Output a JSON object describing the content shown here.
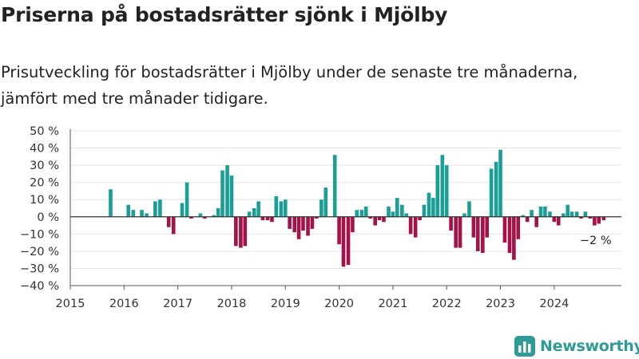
{
  "title": "Priserna på bostadsrätter sjönk i Mjölby",
  "subtitle": "Prisutveckling för bostadsrätter i Mjölby under de senaste tre månaderna, jämfört med tre månader tidigare.",
  "brand": {
    "name": "Newsworthy",
    "logo_icon": "bar-chart-logo-icon",
    "color": "#2e9b96"
  },
  "colors": {
    "positive": "#1a9e96",
    "negative": "#a3134a",
    "grid": "#e4e4e4",
    "axis": "#555555"
  },
  "chart_data": {
    "type": "bar",
    "xlabel": "",
    "ylabel": "",
    "xlim": [
      2015,
      2025.25
    ],
    "ylim": [
      -40,
      50
    ],
    "y_ticks": [
      50,
      40,
      30,
      20,
      10,
      0,
      -10,
      -20,
      -30,
      -40
    ],
    "y_tick_labels": [
      "50 %",
      "40 %",
      "30 %",
      "20 %",
      "10 %",
      "0 %",
      "−10 %",
      "−20 %",
      "−30 %",
      "−40 %"
    ],
    "x_ticks": [
      2015,
      2016,
      2017,
      2018,
      2019,
      2020,
      2021,
      2022,
      2023,
      2024
    ],
    "x_tick_labels": [
      "2015",
      "2016",
      "2017",
      "2018",
      "2019",
      "2020",
      "2021",
      "2022",
      "2023",
      "2024"
    ],
    "grid": true,
    "annotation": {
      "text": "−2 %",
      "x": 2024.92,
      "y": -2
    },
    "x": [
      2015.75,
      2016.08,
      2016.17,
      2016.33,
      2016.42,
      2016.58,
      2016.67,
      2016.83,
      2016.92,
      2017.08,
      2017.17,
      2017.25,
      2017.42,
      2017.5,
      2017.67,
      2017.75,
      2017.83,
      2017.92,
      2018.0,
      2018.08,
      2018.17,
      2018.25,
      2018.33,
      2018.42,
      2018.5,
      2018.58,
      2018.67,
      2018.75,
      2018.83,
      2018.92,
      2019.0,
      2019.08,
      2019.17,
      2019.25,
      2019.33,
      2019.42,
      2019.5,
      2019.58,
      2019.67,
      2019.75,
      2019.92,
      2020.0,
      2020.08,
      2020.17,
      2020.25,
      2020.33,
      2020.42,
      2020.5,
      2020.58,
      2020.67,
      2020.75,
      2020.83,
      2020.92,
      2021.0,
      2021.08,
      2021.17,
      2021.25,
      2021.33,
      2021.42,
      2021.5,
      2021.58,
      2021.67,
      2021.75,
      2021.83,
      2021.92,
      2022.0,
      2022.08,
      2022.17,
      2022.25,
      2022.33,
      2022.42,
      2022.5,
      2022.58,
      2022.67,
      2022.75,
      2022.83,
      2022.92,
      2023.0,
      2023.08,
      2023.17,
      2023.25,
      2023.33,
      2023.42,
      2023.5,
      2023.58,
      2023.67,
      2023.75,
      2023.83,
      2023.92,
      2024.0,
      2024.08,
      2024.17,
      2024.25,
      2024.33,
      2024.42,
      2024.5,
      2024.58,
      2024.67,
      2024.75,
      2024.83,
      2024.92
    ],
    "values": [
      16,
      7,
      4,
      4,
      2,
      9,
      10,
      -6,
      -10,
      8,
      20,
      -1,
      2,
      -1,
      1,
      5,
      27,
      30,
      24,
      -17,
      -18,
      -17,
      3,
      5,
      9,
      -2,
      -2,
      -3,
      12,
      9,
      10,
      -7,
      -9,
      -13,
      -8,
      -11,
      -7,
      -1,
      10,
      17,
      36,
      -16,
      -29,
      -28,
      -9,
      4,
      4,
      6,
      -1,
      -5,
      -2,
      -3,
      6,
      3,
      11,
      7,
      2,
      -10,
      -12,
      -2,
      7,
      14,
      11,
      30,
      36,
      30,
      -8,
      -18,
      -18,
      2,
      9,
      -12,
      -20,
      -21,
      -12,
      28,
      32,
      39,
      -15,
      -21,
      -25,
      -13,
      1,
      -3,
      4,
      -6,
      6,
      6,
      3,
      -3,
      -5,
      2,
      7,
      3,
      3,
      -1,
      3,
      -1,
      -5,
      -4,
      -2
    ]
  }
}
